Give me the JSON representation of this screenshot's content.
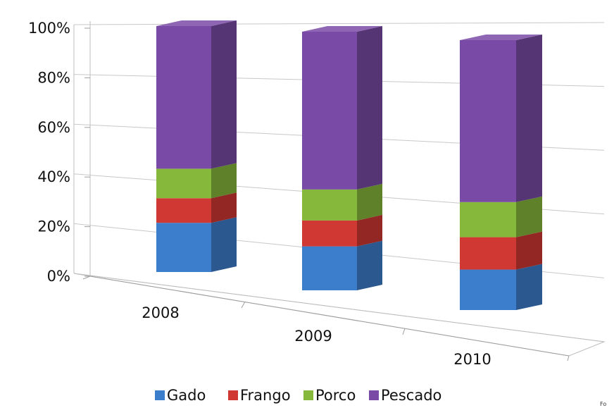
{
  "chart_data": {
    "type": "bar",
    "stacked": true,
    "percent_stacked": true,
    "categories": [
      "2008",
      "2009",
      "2010"
    ],
    "series": [
      {
        "name": "Gado",
        "color": "#3c7dcc",
        "values": [
          20,
          17,
          15
        ]
      },
      {
        "name": "Frango",
        "color": "#d03834",
        "values": [
          10,
          10,
          12
        ]
      },
      {
        "name": "Porco",
        "color": "#86b83c",
        "values": [
          12,
          12,
          13
        ]
      },
      {
        "name": "Pescado",
        "color": "#7a4ba6",
        "values": [
          58,
          61,
          60
        ]
      }
    ],
    "ylim": [
      0,
      100
    ],
    "yticks": [
      "0%",
      "20%",
      "40%",
      "60%",
      "80%",
      "100%"
    ],
    "grid": true,
    "legend": "bottom",
    "corner_text": "Fo"
  }
}
